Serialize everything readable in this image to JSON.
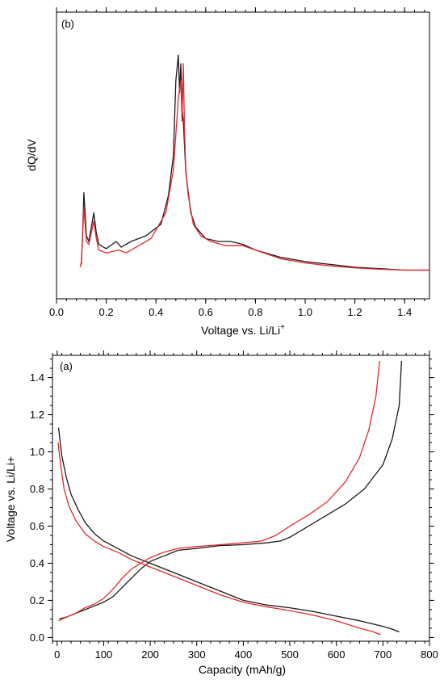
{
  "chart_data": [
    {
      "type": "line",
      "panel_label": "(b)",
      "xlabel": "Voltage vs. Li/Li",
      "xlabel_sup": "+",
      "ylabel": "dQ/dV",
      "xlim": [
        0.0,
        1.5
      ],
      "ylim": [
        0.0,
        1.0
      ],
      "x_ticks": [
        "0.0",
        "0.2",
        "0.4",
        "0.6",
        "0.8",
        "1.0",
        "1.2",
        "1.4"
      ],
      "y_tick_labels_shown": false,
      "grid": false,
      "series": [
        {
          "color": "#1a1a1a",
          "x": [
            0.1,
            0.105,
            0.11,
            0.115,
            0.12,
            0.13,
            0.14,
            0.15,
            0.16,
            0.17,
            0.2,
            0.24,
            0.26,
            0.3,
            0.36,
            0.42,
            0.45,
            0.47,
            0.48,
            0.49,
            0.495,
            0.5,
            0.505,
            0.51,
            0.52,
            0.54,
            0.56,
            0.6,
            0.65,
            0.7,
            0.75,
            0.8,
            0.9,
            1.0,
            1.1,
            1.2,
            1.3,
            1.4,
            1.5
          ],
          "y": [
            0.12,
            0.22,
            0.37,
            0.3,
            0.22,
            0.2,
            0.25,
            0.3,
            0.23,
            0.19,
            0.175,
            0.2,
            0.18,
            0.2,
            0.22,
            0.26,
            0.36,
            0.5,
            0.76,
            0.85,
            0.72,
            0.82,
            0.66,
            0.62,
            0.44,
            0.3,
            0.25,
            0.21,
            0.2,
            0.2,
            0.19,
            0.17,
            0.145,
            0.13,
            0.12,
            0.11,
            0.105,
            0.1,
            0.1
          ]
        },
        {
          "color": "#e8262b",
          "x": [
            0.095,
            0.1,
            0.105,
            0.11,
            0.115,
            0.12,
            0.13,
            0.14,
            0.15,
            0.16,
            0.17,
            0.2,
            0.25,
            0.28,
            0.32,
            0.38,
            0.44,
            0.47,
            0.49,
            0.5,
            0.505,
            0.51,
            0.515,
            0.52,
            0.53,
            0.55,
            0.58,
            0.62,
            0.68,
            0.75,
            0.8,
            0.9,
            1.0,
            1.1,
            1.2,
            1.3,
            1.4,
            1.5
          ],
          "y": [
            0.11,
            0.13,
            0.22,
            0.32,
            0.26,
            0.2,
            0.19,
            0.23,
            0.27,
            0.21,
            0.17,
            0.16,
            0.17,
            0.16,
            0.18,
            0.21,
            0.3,
            0.45,
            0.7,
            0.76,
            0.62,
            0.82,
            0.58,
            0.45,
            0.36,
            0.26,
            0.22,
            0.2,
            0.185,
            0.185,
            0.17,
            0.14,
            0.125,
            0.115,
            0.108,
            0.103,
            0.1,
            0.1
          ]
        }
      ]
    },
    {
      "type": "line",
      "panel_label": "(a)",
      "xlabel": "Capacity (mAh/g)",
      "ylabel": "Voltage vs. Li/Li+",
      "xlim": [
        -10,
        800
      ],
      "ylim": [
        -0.02,
        1.52
      ],
      "x_ticks": [
        "0",
        "100",
        "200",
        "300",
        "400",
        "500",
        "600",
        "700",
        "800"
      ],
      "y_ticks": [
        "0.0",
        "0.2",
        "0.4",
        "0.6",
        "0.8",
        "1.0",
        "1.2",
        "1.4"
      ],
      "grid": false,
      "series": [
        {
          "color": "#1a1a1a",
          "x": [
            3,
            10,
            20,
            30,
            45,
            60,
            80,
            100,
            130,
            160,
            200,
            250,
            300,
            350,
            400,
            450,
            500,
            550,
            600,
            650,
            700,
            720,
            735
          ],
          "y": [
            1.13,
            0.98,
            0.86,
            0.77,
            0.69,
            0.62,
            0.56,
            0.52,
            0.48,
            0.44,
            0.4,
            0.35,
            0.3,
            0.25,
            0.2,
            0.175,
            0.16,
            0.14,
            0.115,
            0.09,
            0.06,
            0.045,
            0.03
          ]
        },
        {
          "color": "#1a1a1a",
          "x": [
            5,
            20,
            40,
            60,
            80,
            100,
            120,
            140,
            160,
            180,
            200,
            230,
            260,
            300,
            350,
            400,
            450,
            480,
            500,
            540,
            580,
            620,
            660,
            700,
            720,
            735,
            740
          ],
          "y": [
            0.1,
            0.11,
            0.13,
            0.15,
            0.17,
            0.19,
            0.22,
            0.27,
            0.32,
            0.37,
            0.41,
            0.44,
            0.47,
            0.48,
            0.495,
            0.5,
            0.51,
            0.52,
            0.54,
            0.6,
            0.66,
            0.72,
            0.8,
            0.93,
            1.07,
            1.25,
            1.49
          ]
        },
        {
          "color": "#e8262b",
          "x": [
            2,
            8,
            15,
            25,
            40,
            60,
            80,
            100,
            130,
            160,
            200,
            250,
            300,
            350,
            400,
            450,
            500,
            550,
            600,
            650,
            680,
            695
          ],
          "y": [
            1.05,
            0.92,
            0.8,
            0.71,
            0.63,
            0.56,
            0.52,
            0.49,
            0.46,
            0.42,
            0.38,
            0.33,
            0.28,
            0.23,
            0.19,
            0.165,
            0.145,
            0.12,
            0.09,
            0.05,
            0.03,
            0.015
          ]
        },
        {
          "color": "#e8262b",
          "x": [
            3,
            20,
            40,
            60,
            80,
            100,
            120,
            140,
            160,
            180,
            200,
            230,
            260,
            300,
            350,
            400,
            440,
            470,
            500,
            540,
            580,
            620,
            650,
            670,
            685,
            693
          ],
          "y": [
            0.09,
            0.11,
            0.13,
            0.16,
            0.18,
            0.21,
            0.26,
            0.32,
            0.37,
            0.4,
            0.43,
            0.46,
            0.48,
            0.49,
            0.5,
            0.51,
            0.52,
            0.55,
            0.6,
            0.66,
            0.73,
            0.84,
            0.97,
            1.12,
            1.3,
            1.49
          ]
        }
      ]
    }
  ]
}
